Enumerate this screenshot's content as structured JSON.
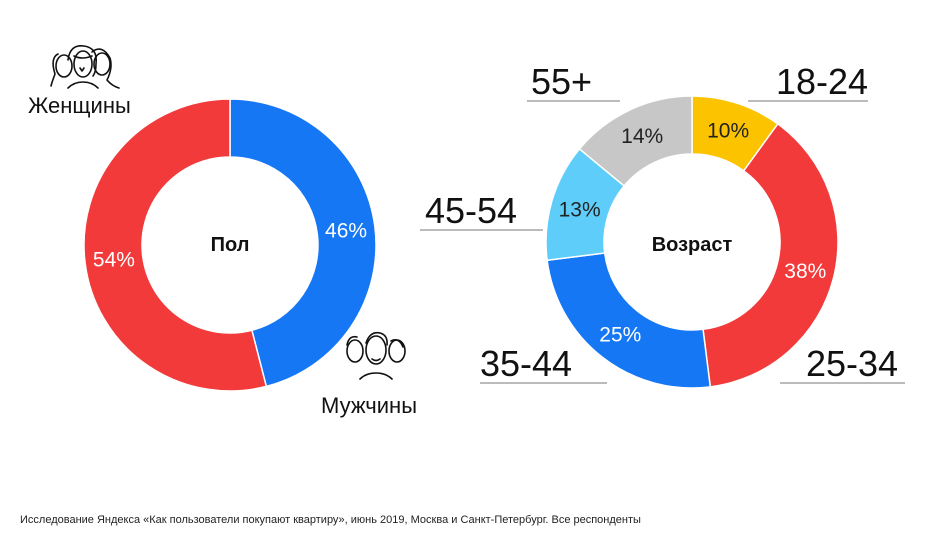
{
  "chart_data": [
    {
      "type": "pie",
      "title": "Пол",
      "categories": [
        "Мужчины",
        "Женщины"
      ],
      "values": [
        46,
        54
      ],
      "value_labels": [
        "46%",
        "54%"
      ],
      "colors": [
        "#1677f5",
        "#f23a3a"
      ],
      "label_colors": [
        "#ffffff",
        "#ffffff"
      ],
      "donut": true
    },
    {
      "type": "pie",
      "title": "Возраст",
      "categories": [
        "18-24",
        "25-34",
        "35-44",
        "45-54",
        "55+"
      ],
      "values": [
        10,
        38,
        25,
        13,
        14
      ],
      "value_labels": [
        "10%",
        "38%",
        "25%",
        "13%",
        "14%"
      ],
      "colors": [
        "#fcc400",
        "#f23a3a",
        "#1677f5",
        "#5fcdfa",
        "#c7c7c7"
      ],
      "label_colors": [
        "#222222",
        "#ffffff",
        "#ffffff",
        "#222222",
        "#222222"
      ],
      "donut": true
    }
  ],
  "legend": {
    "women": "Женщины",
    "men": "Мужчины"
  },
  "icons": {
    "women": "women-group-icon",
    "men": "men-group-icon"
  },
  "footnote": "Исследование Яндекса «Как пользователи покупают квартиру», июнь 2019, Москва и Санкт-Петербург. Все респонденты"
}
